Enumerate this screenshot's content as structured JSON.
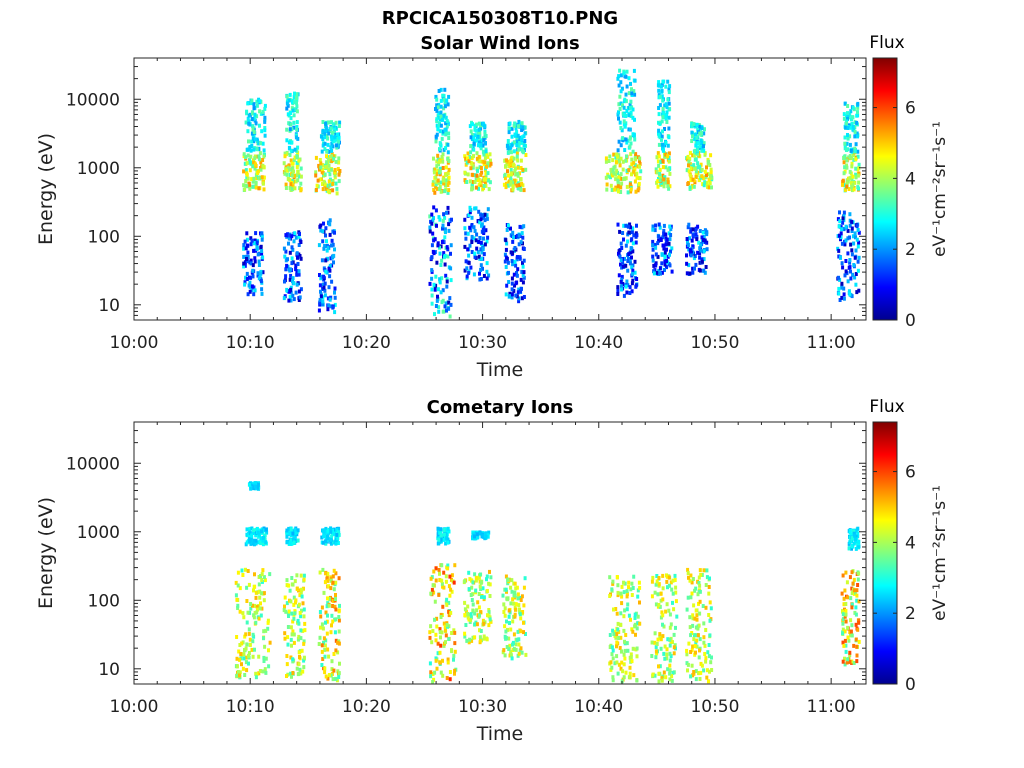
{
  "figure_title": "RPCICA150308T10.PNG",
  "colors": {
    "colormap": [
      "#00008f",
      "#0000ff",
      "#0080ff",
      "#00ffff",
      "#80ff80",
      "#ffff00",
      "#ff8000",
      "#ff0000",
      "#800000"
    ]
  },
  "chart_data": [
    {
      "type": "heatmap",
      "title": "Solar Wind Ions",
      "xlabel": "Time",
      "ylabel": "Energy (eV)",
      "x_ticks": [
        "10:00",
        "10:10",
        "10:20",
        "10:30",
        "10:40",
        "10:50",
        "11:00"
      ],
      "xlim_minutes": [
        0,
        63
      ],
      "y_scale": "log",
      "y_ticks": [
        "10",
        "100",
        "1000",
        "10000"
      ],
      "ylim": [
        6,
        40000
      ],
      "colorbar": {
        "title": "Flux",
        "ticks": [
          "0",
          "2",
          "4",
          "6"
        ],
        "range": [
          0,
          7.4
        ],
        "unit_label": "eV⁻¹cm⁻²sr⁻¹s⁻¹"
      },
      "clusters": [
        {
          "t": [
            9.3,
            11.2
          ],
          "e": [
            500,
            1800
          ],
          "flux": [
            3.0,
            5.5
          ]
        },
        {
          "t": [
            9.5,
            11.2
          ],
          "e": [
            1800,
            11000
          ],
          "flux": [
            2.0,
            3.5
          ]
        },
        {
          "t": [
            9.3,
            11.0
          ],
          "e": [
            15,
            130
          ],
          "flux": [
            0.3,
            2.8
          ]
        },
        {
          "t": [
            12.8,
            14.3
          ],
          "e": [
            500,
            1800
          ],
          "flux": [
            3.0,
            5.5
          ]
        },
        {
          "t": [
            13.0,
            14.0
          ],
          "e": [
            1800,
            13000
          ],
          "flux": [
            2.0,
            3.5
          ]
        },
        {
          "t": [
            12.8,
            14.3
          ],
          "e": [
            12,
            130
          ],
          "flux": [
            0.3,
            2.8
          ]
        },
        {
          "t": [
            15.5,
            17.6
          ],
          "e": [
            450,
            1700
          ],
          "flux": [
            3.0,
            5.5
          ]
        },
        {
          "t": [
            16.0,
            17.6
          ],
          "e": [
            1800,
            5000
          ],
          "flux": [
            2.0,
            3.5
          ]
        },
        {
          "t": [
            15.8,
            17.2
          ],
          "e": [
            8,
            200
          ],
          "flux": [
            0.3,
            2.8
          ]
        },
        {
          "t": [
            25.6,
            27.0
          ],
          "e": [
            450,
            1700
          ],
          "flux": [
            3.0,
            5.5
          ]
        },
        {
          "t": [
            25.8,
            27.0
          ],
          "e": [
            1800,
            15000
          ],
          "flux": [
            2.0,
            3.5
          ]
        },
        {
          "t": [
            25.3,
            27.2
          ],
          "e": [
            7,
            300
          ],
          "flux": [
            0.3,
            3.5
          ]
        },
        {
          "t": [
            28.3,
            30.6
          ],
          "e": [
            500,
            1800
          ],
          "flux": [
            3.0,
            5.5
          ]
        },
        {
          "t": [
            28.8,
            30.2
          ],
          "e": [
            1800,
            5000
          ],
          "flux": [
            2.0,
            3.5
          ]
        },
        {
          "t": [
            28.3,
            30.4
          ],
          "e": [
            25,
            280
          ],
          "flux": [
            0.3,
            2.8
          ]
        },
        {
          "t": [
            31.6,
            33.6
          ],
          "e": [
            500,
            1800
          ],
          "flux": [
            3.0,
            5.5
          ]
        },
        {
          "t": [
            32.0,
            33.6
          ],
          "e": [
            1800,
            5000
          ],
          "flux": [
            2.0,
            3.5
          ]
        },
        {
          "t": [
            31.8,
            33.5
          ],
          "e": [
            12,
            160
          ],
          "flux": [
            0.3,
            2.8
          ]
        },
        {
          "t": [
            40.5,
            43.5
          ],
          "e": [
            450,
            1700
          ],
          "flux": [
            3.0,
            5.5
          ]
        },
        {
          "t": [
            41.5,
            43.0
          ],
          "e": [
            1800,
            30000
          ],
          "flux": [
            2.0,
            3.5
          ]
        },
        {
          "t": [
            41.5,
            43.2
          ],
          "e": [
            12,
            160
          ],
          "flux": [
            0.3,
            2.8
          ]
        },
        {
          "t": [
            44.8,
            46.0
          ],
          "e": [
            500,
            1800
          ],
          "flux": [
            3.0,
            5.5
          ]
        },
        {
          "t": [
            45.0,
            46.0
          ],
          "e": [
            1800,
            20000
          ],
          "flux": [
            2.0,
            3.5
          ]
        },
        {
          "t": [
            44.5,
            46.2
          ],
          "e": [
            30,
            160
          ],
          "flux": [
            0.3,
            2.8
          ]
        },
        {
          "t": [
            47.4,
            49.6
          ],
          "e": [
            500,
            1800
          ],
          "flux": [
            3.0,
            5.5
          ]
        },
        {
          "t": [
            47.8,
            49.0
          ],
          "e": [
            1800,
            5000
          ],
          "flux": [
            2.0,
            3.5
          ]
        },
        {
          "t": [
            47.4,
            49.2
          ],
          "e": [
            30,
            160
          ],
          "flux": [
            0.3,
            2.8
          ]
        },
        {
          "t": [
            60.8,
            62.3
          ],
          "e": [
            500,
            1800
          ],
          "flux": [
            3.0,
            5.5
          ]
        },
        {
          "t": [
            61.0,
            62.2
          ],
          "e": [
            1800,
            10000
          ],
          "flux": [
            2.0,
            3.5
          ]
        },
        {
          "t": [
            60.4,
            62.3
          ],
          "e": [
            12,
            250
          ],
          "flux": [
            0.3,
            2.8
          ]
        }
      ]
    },
    {
      "type": "heatmap",
      "title": "Cometary Ions",
      "xlabel": "Time",
      "ylabel": "Energy (eV)",
      "x_ticks": [
        "10:00",
        "10:10",
        "10:20",
        "10:30",
        "10:40",
        "10:50",
        "11:00"
      ],
      "xlim_minutes": [
        0,
        63
      ],
      "y_scale": "log",
      "y_ticks": [
        "10",
        "100",
        "1000",
        "10000"
      ],
      "ylim": [
        6,
        40000
      ],
      "colorbar": {
        "title": "Flux",
        "ticks": [
          "0",
          "2",
          "4",
          "6"
        ],
        "range": [
          0,
          7.4
        ],
        "unit_label": "eV⁻¹cm⁻²sr⁻¹s⁻¹"
      },
      "clusters": [
        {
          "t": [
            9.5,
            11.3
          ],
          "e": [
            700,
            1200
          ],
          "flux": [
            2.2,
            3.0
          ]
        },
        {
          "t": [
            9.8,
            10.6
          ],
          "e": [
            4500,
            5500
          ],
          "flux": [
            2.2,
            2.8
          ]
        },
        {
          "t": [
            8.6,
            11.6
          ],
          "e": [
            8,
            300
          ],
          "flux": [
            3.0,
            5.2
          ]
        },
        {
          "t": [
            13.0,
            14.0
          ],
          "e": [
            700,
            1200
          ],
          "flux": [
            2.2,
            3.0
          ]
        },
        {
          "t": [
            12.8,
            14.6
          ],
          "e": [
            8,
            250
          ],
          "flux": [
            3.0,
            5.2
          ]
        },
        {
          "t": [
            16.0,
            17.6
          ],
          "e": [
            700,
            1200
          ],
          "flux": [
            2.2,
            3.0
          ]
        },
        {
          "t": [
            15.8,
            17.6
          ],
          "e": [
            6,
            300
          ],
          "flux": [
            3.0,
            5.8
          ]
        },
        {
          "t": [
            25.3,
            27.6
          ],
          "e": [
            6,
            350
          ],
          "flux": [
            3.0,
            6.2
          ]
        },
        {
          "t": [
            26.0,
            27.0
          ],
          "e": [
            700,
            1200
          ],
          "flux": [
            2.2,
            3.0
          ]
        },
        {
          "t": [
            28.3,
            30.6
          ],
          "e": [
            25,
            300
          ],
          "flux": [
            3.0,
            5.2
          ]
        },
        {
          "t": [
            29.0,
            30.4
          ],
          "e": [
            850,
            1050
          ],
          "flux": [
            2.2,
            2.8
          ]
        },
        {
          "t": [
            31.6,
            33.6
          ],
          "e": [
            15,
            250
          ],
          "flux": [
            3.0,
            5.2
          ]
        },
        {
          "t": [
            40.8,
            43.4
          ],
          "e": [
            6,
            250
          ],
          "flux": [
            3.0,
            5.2
          ]
        },
        {
          "t": [
            44.4,
            46.6
          ],
          "e": [
            6,
            250
          ],
          "flux": [
            3.0,
            5.2
          ]
        },
        {
          "t": [
            47.4,
            49.6
          ],
          "e": [
            6,
            300
          ],
          "flux": [
            3.0,
            5.2
          ]
        },
        {
          "t": [
            60.8,
            62.3
          ],
          "e": [
            12,
            300
          ],
          "flux": [
            3.0,
            6.0
          ]
        },
        {
          "t": [
            61.4,
            62.3
          ],
          "e": [
            600,
            1200
          ],
          "flux": [
            2.2,
            3.0
          ]
        }
      ]
    }
  ]
}
